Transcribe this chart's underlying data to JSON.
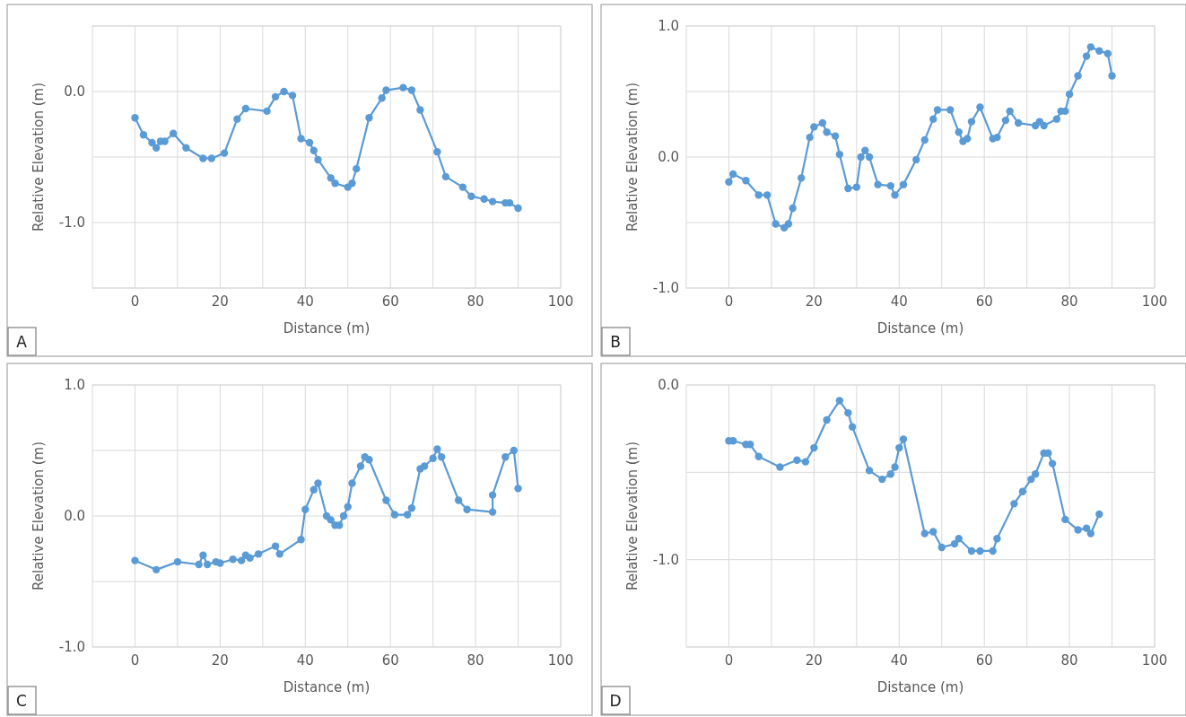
{
  "chart_data": [
    {
      "type": "line",
      "xlabel": "Distance (m)",
      "ylabel": "Relative Elevation (m)",
      "annotations": [
        "A"
      ],
      "grid": true,
      "marker": "circle",
      "line_style": "solid",
      "xlim": [
        -10,
        100
      ],
      "ylim": [
        -1.5,
        0.5
      ],
      "xticks": [
        0,
        {
          "value": 10,
          "label": null
        },
        20,
        {
          "value": 30,
          "label": null
        },
        40,
        {
          "value": 50,
          "label": null
        },
        60,
        {
          "value": 70,
          "label": null
        },
        80,
        {
          "value": 90,
          "label": null
        },
        100
      ],
      "yticks": [
        {
          "value": 0.5,
          "label": null
        },
        {
          "value": 0,
          "label": "0.0"
        },
        {
          "value": -0.5,
          "label": null
        },
        {
          "value": -1,
          "label": "-1.0"
        },
        {
          "value": -1.5,
          "label": null
        }
      ],
      "series": [
        {
          "color": "#5b9bd5",
          "x": [
            0,
            2,
            4,
            5,
            6,
            7,
            9,
            12,
            16,
            18,
            21,
            24,
            26,
            31,
            33,
            35,
            37,
            39,
            41,
            42,
            43,
            46,
            47,
            50,
            51,
            52,
            55,
            58,
            59,
            63,
            65,
            67,
            71,
            73,
            77,
            79,
            82,
            84,
            87,
            88,
            90
          ],
          "values": [
            -0.2,
            -0.33,
            -0.39,
            -0.43,
            -0.38,
            -0.38,
            -0.32,
            -0.43,
            -0.51,
            -0.51,
            -0.47,
            -0.21,
            -0.13,
            -0.15,
            -0.04,
            0.0,
            -0.03,
            -0.36,
            -0.39,
            -0.45,
            -0.52,
            -0.66,
            -0.7,
            -0.73,
            -0.7,
            -0.59,
            -0.2,
            -0.05,
            0.01,
            0.03,
            0.01,
            -0.14,
            -0.46,
            -0.65,
            -0.73,
            -0.8,
            -0.82,
            -0.84,
            -0.85,
            -0.85,
            -0.89
          ]
        }
      ]
    },
    {
      "type": "line",
      "xlabel": "Distance (m)",
      "ylabel": "Relative Elevation (m)",
      "annotations": [
        "B"
      ],
      "grid": true,
      "marker": "circle",
      "line_style": "solid",
      "xlim": [
        -10,
        100
      ],
      "ylim": [
        -1,
        1
      ],
      "xticks": [
        0,
        {
          "value": 10,
          "label": null
        },
        20,
        {
          "value": 30,
          "label": null
        },
        40,
        {
          "value": 50,
          "label": null
        },
        60,
        {
          "value": 70,
          "label": null
        },
        80,
        {
          "value": 90,
          "label": null
        },
        100
      ],
      "yticks": [
        {
          "value": 1,
          "label": "1.0"
        },
        {
          "value": 0.5,
          "label": null
        },
        {
          "value": 0,
          "label": "0.0"
        },
        {
          "value": -0.5,
          "label": null
        },
        {
          "value": -1,
          "label": "-1.0"
        }
      ],
      "series": [
        {
          "color": "#5b9bd5",
          "x": [
            0,
            1,
            4,
            7,
            9,
            11,
            13,
            14,
            15,
            17,
            19,
            20,
            22,
            23,
            25,
            26,
            28,
            30,
            31,
            32,
            33,
            35,
            38,
            39,
            41,
            44,
            46,
            48,
            49,
            52,
            54,
            55,
            56,
            57,
            59,
            62,
            63,
            65,
            66,
            68,
            72,
            73,
            74,
            77,
            78,
            79,
            80,
            82,
            84,
            85,
            87,
            89,
            90
          ],
          "values": [
            -0.19,
            -0.13,
            -0.18,
            -0.29,
            -0.29,
            -0.51,
            -0.54,
            -0.51,
            -0.39,
            -0.16,
            0.15,
            0.23,
            0.26,
            0.19,
            0.16,
            0.02,
            -0.24,
            -0.23,
            0.0,
            0.05,
            0.0,
            -0.21,
            -0.22,
            -0.29,
            -0.21,
            -0.02,
            0.13,
            0.29,
            0.36,
            0.36,
            0.19,
            0.12,
            0.14,
            0.27,
            0.38,
            0.14,
            0.15,
            0.28,
            0.35,
            0.26,
            0.24,
            0.27,
            0.24,
            0.29,
            0.35,
            0.35,
            0.48,
            0.62,
            0.77,
            0.84,
            0.81,
            0.79,
            0.62
          ]
        }
      ]
    },
    {
      "type": "line",
      "xlabel": "Distance (m)",
      "ylabel": "Relative Elevation (m)",
      "annotations": [
        "C"
      ],
      "grid": true,
      "marker": "circle",
      "line_style": "solid",
      "xlim": [
        -10,
        100
      ],
      "ylim": [
        -1,
        1
      ],
      "xticks": [
        0,
        {
          "value": 10,
          "label": null
        },
        20,
        {
          "value": 30,
          "label": null
        },
        40,
        {
          "value": 50,
          "label": null
        },
        60,
        {
          "value": 70,
          "label": null
        },
        80,
        {
          "value": 90,
          "label": null
        },
        100
      ],
      "yticks": [
        {
          "value": 1,
          "label": "1.0"
        },
        {
          "value": 0.5,
          "label": null
        },
        {
          "value": 0,
          "label": "0.0"
        },
        {
          "value": -0.5,
          "label": null
        },
        {
          "value": -1,
          "label": "-1.0"
        }
      ],
      "series": [
        {
          "color": "#5b9bd5",
          "x": [
            0,
            5,
            10,
            15,
            16,
            17,
            19,
            20,
            23,
            25,
            26,
            27,
            29,
            33,
            34,
            39,
            40,
            42,
            43,
            45,
            46,
            47,
            48,
            49,
            50,
            51,
            53,
            54,
            55,
            59,
            61,
            64,
            65,
            67,
            68,
            70,
            71,
            72,
            76,
            78,
            84,
            84,
            87,
            89,
            90
          ],
          "values": [
            -0.34,
            -0.41,
            -0.35,
            -0.37,
            -0.3,
            -0.37,
            -0.35,
            -0.36,
            -0.33,
            -0.34,
            -0.3,
            -0.32,
            -0.29,
            -0.23,
            -0.29,
            -0.18,
            0.05,
            0.2,
            0.25,
            0.0,
            -0.03,
            -0.07,
            -0.07,
            0.0,
            0.07,
            0.25,
            0.38,
            0.45,
            0.43,
            0.12,
            0.01,
            0.01,
            0.06,
            0.36,
            0.38,
            0.44,
            0.51,
            0.45,
            0.12,
            0.05,
            0.03,
            0.16,
            0.45,
            0.5,
            0.21
          ]
        }
      ]
    },
    {
      "type": "line",
      "xlabel": "Distance (m)",
      "ylabel": "Relative Elevation (m)",
      "annotations": [
        "D"
      ],
      "grid": true,
      "marker": "circle",
      "line_style": "solid",
      "xlim": [
        -10,
        100
      ],
      "ylim": [
        -1.5,
        0
      ],
      "xticks": [
        0,
        {
          "value": 10,
          "label": null
        },
        20,
        {
          "value": 30,
          "label": null
        },
        40,
        {
          "value": 50,
          "label": null
        },
        60,
        {
          "value": 70,
          "label": null
        },
        80,
        {
          "value": 90,
          "label": null
        },
        100
      ],
      "yticks": [
        {
          "value": 0,
          "label": "0.0"
        },
        {
          "value": -0.5,
          "label": null
        },
        {
          "value": -1,
          "label": "-1.0"
        },
        {
          "value": -1.5,
          "label": null
        }
      ],
      "series": [
        {
          "color": "#5b9bd5",
          "x": [
            0,
            1,
            4,
            5,
            7,
            12,
            16,
            18,
            20,
            23,
            26,
            28,
            29,
            33,
            36,
            38,
            39,
            40,
            41,
            46,
            48,
            50,
            53,
            54,
            57,
            59,
            62,
            63,
            67,
            69,
            71,
            72,
            74,
            75,
            76,
            79,
            82,
            84,
            85,
            87
          ],
          "values": [
            -0.32,
            -0.32,
            -0.34,
            -0.34,
            -0.41,
            -0.47,
            -0.43,
            -0.44,
            -0.36,
            -0.2,
            -0.09,
            -0.16,
            -0.24,
            -0.49,
            -0.54,
            -0.51,
            -0.47,
            -0.36,
            -0.31,
            -0.85,
            -0.84,
            -0.93,
            -0.91,
            -0.88,
            -0.95,
            -0.95,
            -0.95,
            -0.88,
            -0.68,
            -0.61,
            -0.54,
            -0.51,
            -0.39,
            -0.39,
            -0.45,
            -0.77,
            -0.83,
            -0.82,
            -0.85,
            -0.74
          ]
        }
      ]
    }
  ]
}
